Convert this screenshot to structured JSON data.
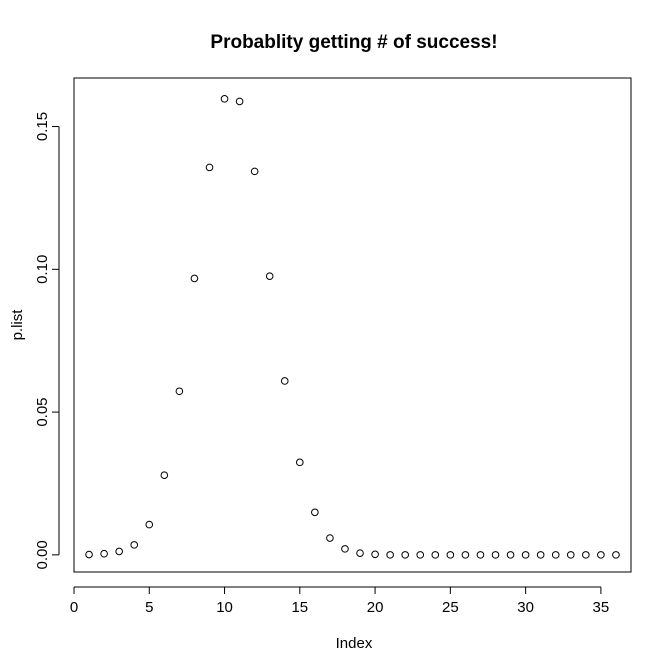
{
  "chart_data": {
    "type": "scatter",
    "title": "Probablity getting # of success!",
    "xlabel": "Index",
    "ylabel": "p.list",
    "xlim": [
      0,
      37
    ],
    "ylim": [
      -0.006,
      0.167
    ],
    "xticks": [
      0,
      5,
      10,
      15,
      20,
      25,
      30,
      35
    ],
    "xtick_labels": [
      "0",
      "5",
      "10",
      "15",
      "20",
      "25",
      "30",
      "35"
    ],
    "yticks": [
      0.0,
      0.05,
      0.1,
      0.15
    ],
    "ytick_labels": [
      "0.00",
      "0.05",
      "0.10",
      "0.15"
    ],
    "grid": false,
    "marker": "open-circle",
    "x": [
      1,
      2,
      3,
      4,
      5,
      6,
      7,
      8,
      9,
      10,
      11,
      12,
      13,
      14,
      15,
      16,
      17,
      18,
      19,
      20,
      21,
      22,
      23,
      24,
      25,
      26,
      27,
      28,
      29,
      30,
      31,
      32,
      33,
      34,
      35,
      36
    ],
    "y": [
      0.0001,
      0.0004,
      0.0012,
      0.0035,
      0.0106,
      0.0279,
      0.0573,
      0.0968,
      0.1357,
      0.1597,
      0.1588,
      0.1343,
      0.0976,
      0.0609,
      0.0324,
      0.0149,
      0.0059,
      0.0021,
      0.0006,
      0.0002,
      0.0,
      0.0,
      0.0,
      0.0,
      0.0,
      0.0,
      0.0,
      0.0,
      0.0,
      0.0,
      0.0,
      0.0,
      0.0,
      0.0,
      0.0,
      0.0
    ]
  }
}
